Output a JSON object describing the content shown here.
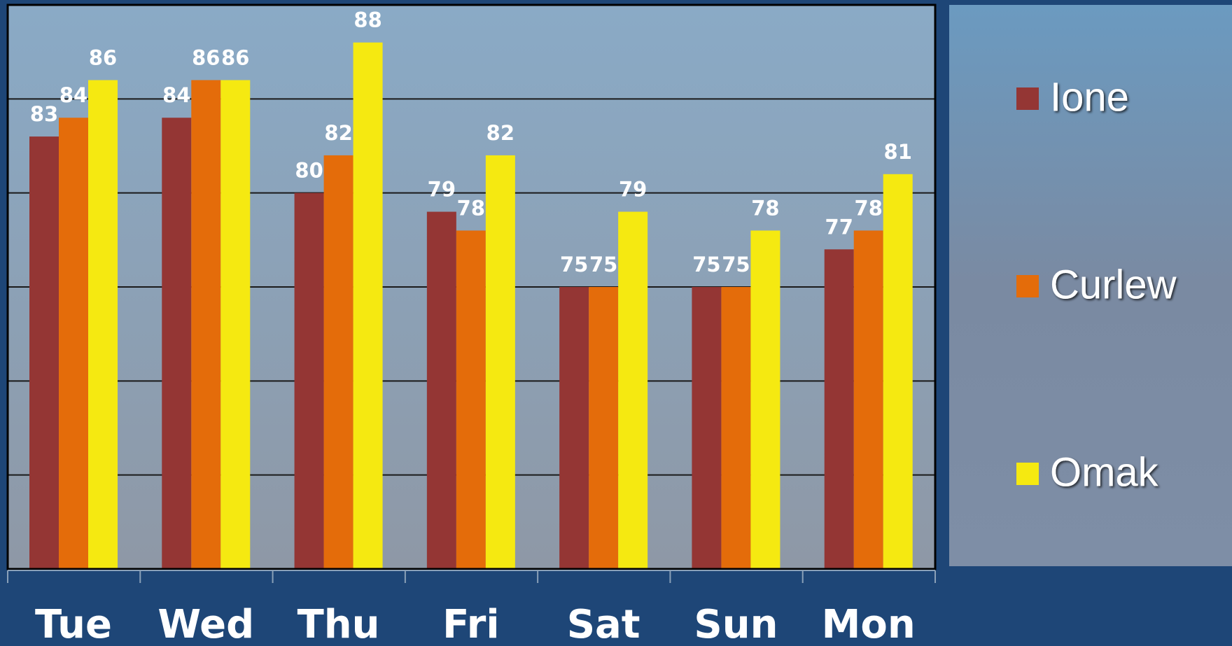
{
  "chart_data": {
    "type": "bar",
    "categories": [
      "Tue",
      "Wed",
      "Thu",
      "Fri",
      "Sat",
      "Sun",
      "Mon"
    ],
    "series": [
      {
        "name": "Ione",
        "color": "#943634",
        "values": [
          83,
          84,
          80,
          79,
          75,
          75,
          77
        ]
      },
      {
        "name": "Curlew",
        "color": "#e46c0a",
        "values": [
          84,
          86,
          82,
          78,
          75,
          75,
          78
        ]
      },
      {
        "name": "Omak",
        "color": "#f5e911",
        "values": [
          86,
          86,
          88,
          82,
          79,
          78,
          81
        ]
      }
    ],
    "ylim": [
      60,
      90
    ],
    "yticks": [
      60,
      65,
      70,
      75,
      80,
      85,
      90
    ],
    "grid": true,
    "legend": "right"
  }
}
